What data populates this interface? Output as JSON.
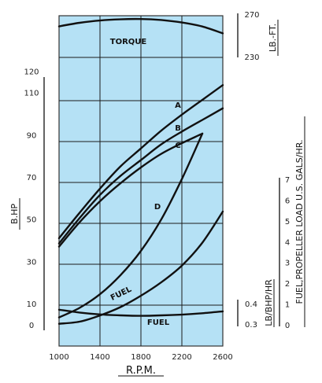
{
  "chart_data": {
    "type": "line",
    "title": "",
    "xlabel": "R.P.M.",
    "x_ticks": [
      1000,
      1400,
      1800,
      2200,
      2600
    ],
    "xlim": [
      1000,
      2600
    ],
    "axes": {
      "bhp": {
        "label": "B.HP",
        "tick_labels": [
          "120",
          "110",
          "90",
          "70",
          "50",
          "30",
          "10",
          "0"
        ],
        "tick_values": [
          120,
          110,
          90,
          70,
          50,
          30,
          10,
          0
        ]
      },
      "torque": {
        "label": "LB.-FT.",
        "tick_labels": [
          "270",
          "230"
        ],
        "range": [
          230,
          270
        ]
      },
      "fuel_rate": {
        "label": "FUEL,PROPELLER LOAD U.S. GALS/HR.",
        "tick_labels": [
          "7",
          "6",
          "5",
          "4",
          "3",
          "2",
          "1",
          "0"
        ],
        "tick_values": [
          7,
          6,
          5,
          4,
          3,
          2,
          1,
          0
        ]
      },
      "specific_fuel": {
        "label": "LB/BHP/HR",
        "tick_labels": [
          "0.4",
          "0.3"
        ],
        "range": [
          0.3,
          0.4
        ]
      }
    },
    "series": [
      {
        "name": "TORQUE",
        "axis": "torque",
        "x": [
          1000,
          1200,
          1400,
          1600,
          1800,
          2000,
          2200,
          2400,
          2600
        ],
        "y": [
          261,
          264.5,
          266.8,
          268,
          268.3,
          267.3,
          264.8,
          260.8,
          254
        ]
      },
      {
        "name": "A",
        "axis": "bhp",
        "x": [
          1000,
          1200,
          1400,
          1600,
          1800,
          2000,
          2200,
          2400,
          2600
        ],
        "y": [
          41,
          53,
          64.5,
          75,
          83.5,
          92,
          99.5,
          106.5,
          113.5
        ]
      },
      {
        "name": "B",
        "axis": "bhp",
        "x": [
          1000,
          1200,
          1400,
          1600,
          1800,
          2000,
          2200,
          2400,
          2600
        ],
        "y": [
          38.5,
          50.5,
          61.5,
          70.5,
          78,
          85.5,
          91.5,
          97,
          102.5
        ]
      },
      {
        "name": "C",
        "axis": "bhp",
        "x": [
          1000,
          1200,
          1400,
          1600,
          1800,
          2000,
          2200,
          2400
        ],
        "y": [
          37,
          48.5,
          58.5,
          67,
          74.5,
          81,
          86,
          90.5
        ]
      },
      {
        "name": "D",
        "axis": "bhp",
        "x": [
          1000,
          1200,
          1400,
          1600,
          1800,
          2000,
          2200,
          2400
        ],
        "y": [
          3.5,
          8,
          14.5,
          23.5,
          35,
          50,
          69,
          90.5
        ]
      },
      {
        "name": "FUEL",
        "axis": "fuel_rate",
        "x": [
          1000,
          1200,
          1400,
          1600,
          1800,
          2000,
          2200,
          2400,
          2600
        ],
        "y": [
          0.05,
          0.15,
          0.45,
          0.85,
          1.4,
          2.05,
          2.85,
          3.95,
          5.45
        ]
      },
      {
        "name": "FUEL",
        "axis": "specific_fuel",
        "x": [
          1000,
          1200,
          1400,
          1600,
          1800,
          2000,
          2200,
          2400,
          2600
        ],
        "y": [
          0.364,
          0.352,
          0.344,
          0.34,
          0.338,
          0.34,
          0.343,
          0.349,
          0.357
        ]
      }
    ]
  }
}
